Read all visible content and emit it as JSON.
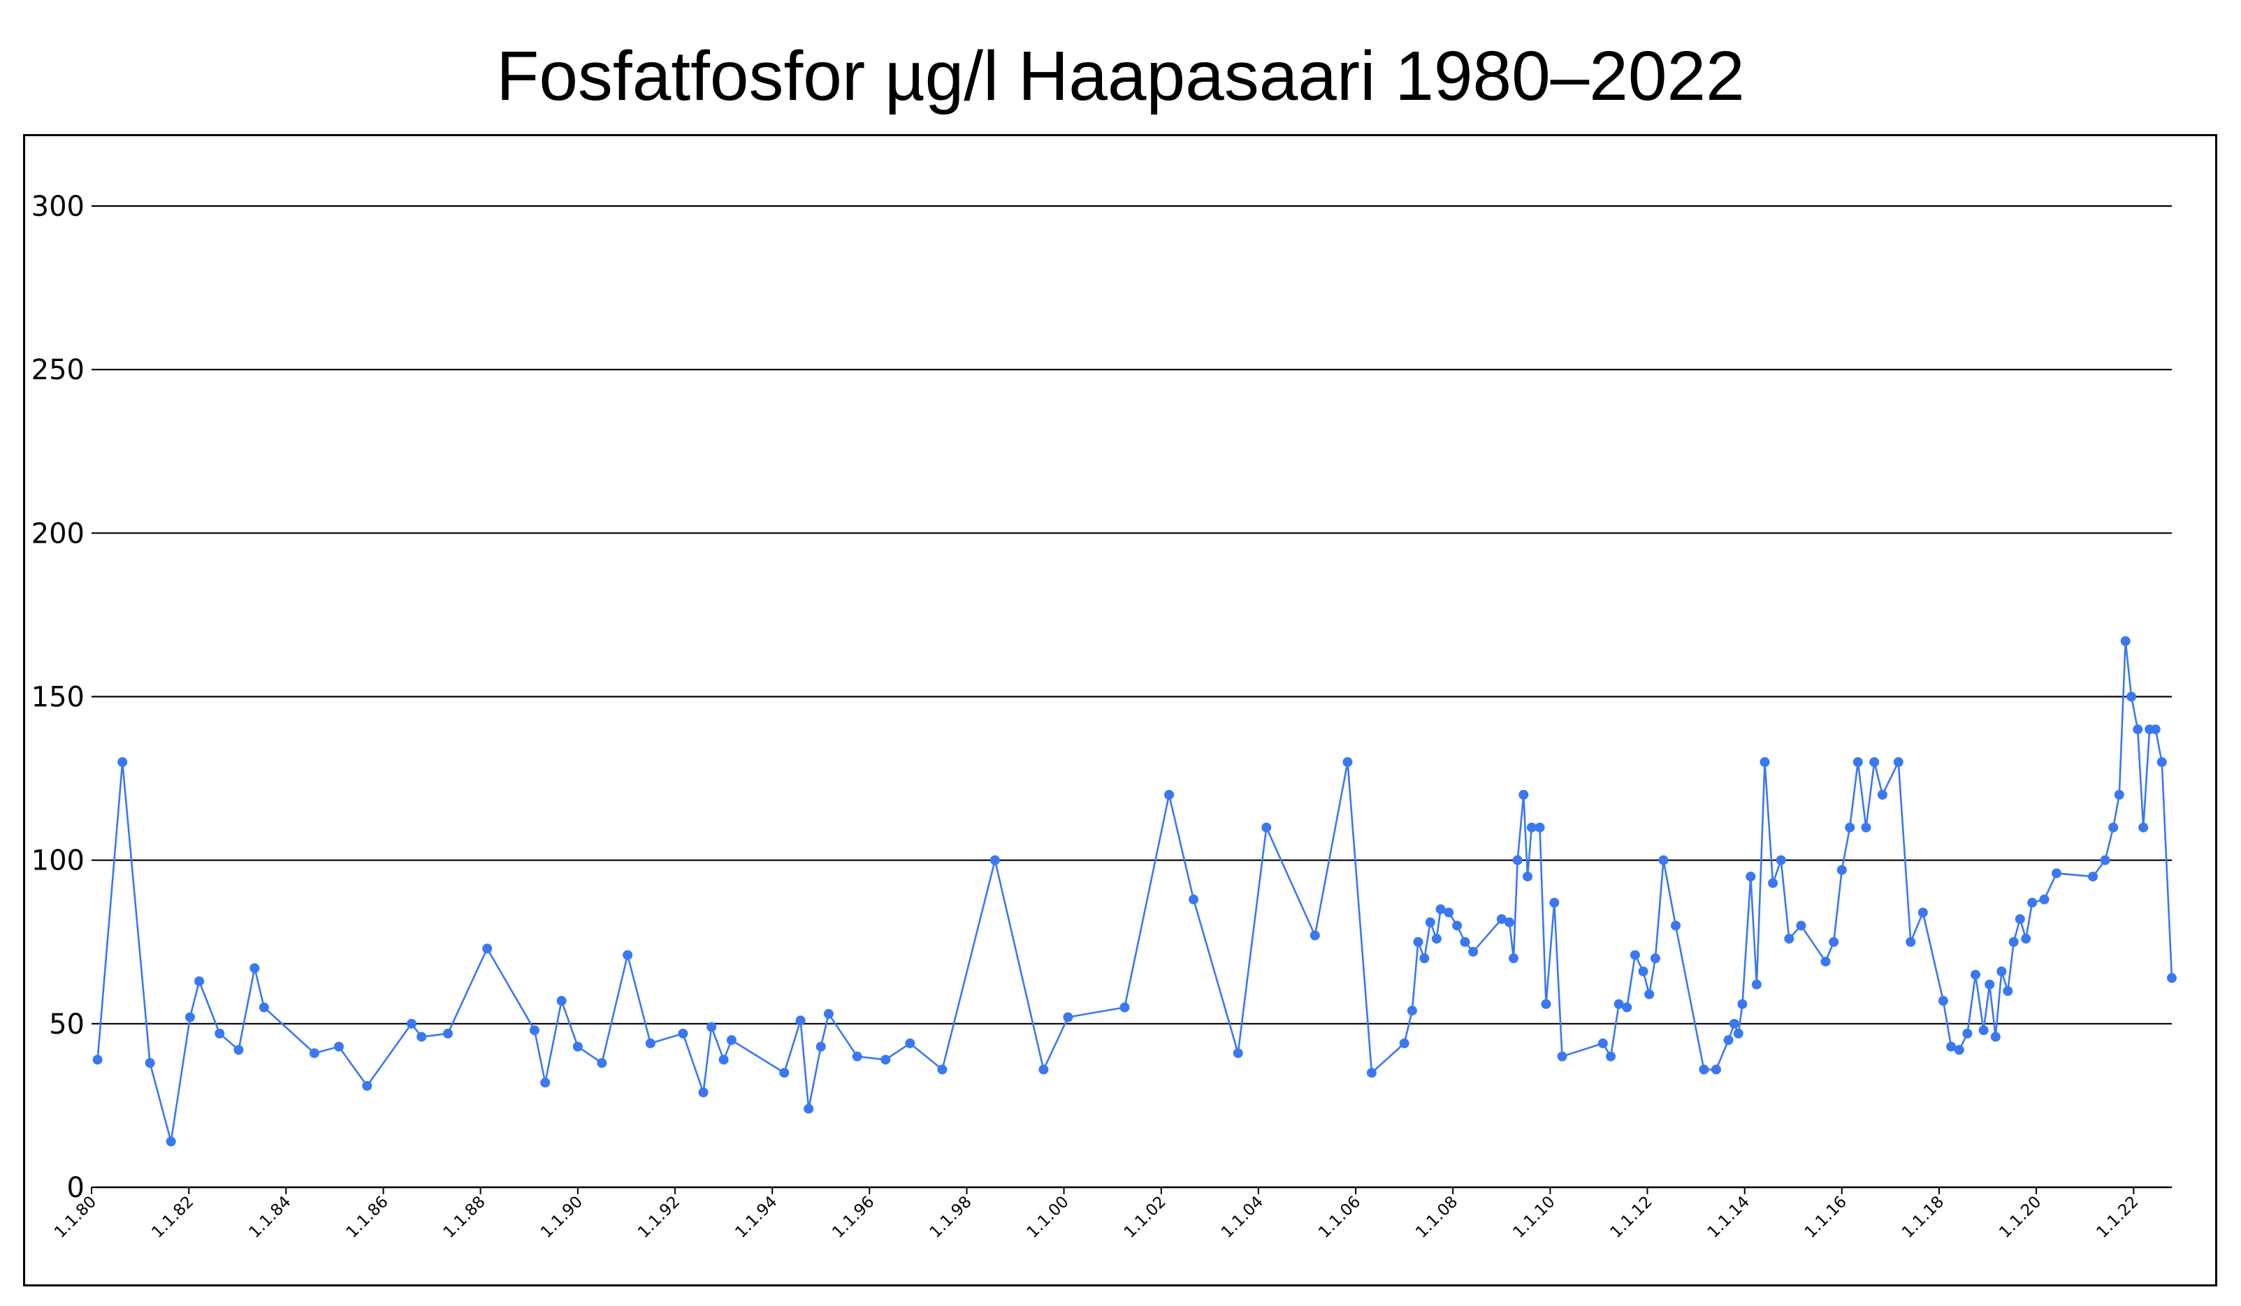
{
  "chart_data": {
    "type": "line",
    "title": "Fosfatfosfor µg/l Haapasaari 1980–2022",
    "xlabel": "",
    "ylabel": "",
    "ylim": [
      0,
      300
    ],
    "xlim": [
      "1980-01-01",
      "2022-10-15"
    ],
    "yticks": [
      0,
      50,
      100,
      150,
      200,
      250,
      300
    ],
    "ytick_labels": [
      "0",
      "50",
      "100",
      "150",
      "200",
      "250",
      "300"
    ],
    "xtick_labels": [
      "1.1.80",
      "1.1.82",
      "1.1.84",
      "1.1.86",
      "1.1.88",
      "1.1.90",
      "1.1.92",
      "1.1.94",
      "1.1.96",
      "1.1.98",
      "1.1.00",
      "1.1.02",
      "1.1.04",
      "1.1.06",
      "1.1.08",
      "1.1.10",
      "1.1.12",
      "1.1.14",
      "1.1.16",
      "1.1.18",
      "1.1.20",
      "1.1.22"
    ],
    "xtick_dates": [
      "1980-01-01",
      "1982-01-01",
      "1984-01-01",
      "1986-01-01",
      "1988-01-01",
      "1990-01-01",
      "1992-01-01",
      "1994-01-01",
      "1996-01-01",
      "1998-01-01",
      "2000-01-01",
      "2002-01-01",
      "2004-01-01",
      "2006-01-01",
      "2008-01-01",
      "2010-01-01",
      "2012-01-01",
      "2014-01-01",
      "2016-01-01",
      "2018-01-01",
      "2020-01-01",
      "2022-01-01"
    ],
    "grid": "horizontal",
    "series": [
      {
        "name": "",
        "color": "#3a78f2",
        "points": [
          [
            "1980-02-15",
            39
          ],
          [
            "1980-08-20",
            130
          ],
          [
            "1981-03-15",
            38
          ],
          [
            "1981-08-20",
            14
          ],
          [
            "1982-01-10",
            52
          ],
          [
            "1982-03-20",
            63
          ],
          [
            "1982-08-20",
            47
          ],
          [
            "1983-01-10",
            42
          ],
          [
            "1983-05-10",
            67
          ],
          [
            "1983-07-20",
            55
          ],
          [
            "1984-08-01",
            41
          ],
          [
            "1985-02-01",
            43
          ],
          [
            "1985-09-01",
            31
          ],
          [
            "1986-08-01",
            50
          ],
          [
            "1986-10-15",
            46
          ],
          [
            "1987-05-01",
            47
          ],
          [
            "1988-02-20",
            73
          ],
          [
            "1989-02-10",
            48
          ],
          [
            "1989-05-01",
            32
          ],
          [
            "1989-09-01",
            57
          ],
          [
            "1990-01-01",
            43
          ],
          [
            "1990-07-01",
            38
          ],
          [
            "1991-01-10",
            71
          ],
          [
            "1991-07-01",
            44
          ],
          [
            "1992-03-01",
            47
          ],
          [
            "1992-08-01",
            29
          ],
          [
            "1992-10-01",
            49
          ],
          [
            "1993-01-01",
            39
          ],
          [
            "1993-03-01",
            45
          ],
          [
            "1994-04-01",
            35
          ],
          [
            "1994-08-01",
            51
          ],
          [
            "1994-10-01",
            24
          ],
          [
            "1995-01-01",
            43
          ],
          [
            "1995-03-01",
            53
          ],
          [
            "1995-10-01",
            40
          ],
          [
            "1996-05-01",
            39
          ],
          [
            "1996-11-01",
            44
          ],
          [
            "1997-07-01",
            36
          ],
          [
            "1998-08-01",
            100
          ],
          [
            "1999-08-01",
            36
          ],
          [
            "2000-02-01",
            52
          ],
          [
            "2001-04-01",
            55
          ],
          [
            "2002-03-01",
            120
          ],
          [
            "2002-09-01",
            88
          ],
          [
            "2003-08-01",
            41
          ],
          [
            "2004-03-01",
            110
          ],
          [
            "2005-03-01",
            77
          ],
          [
            "2005-11-01",
            130
          ],
          [
            "2006-05-01",
            35
          ],
          [
            "2007-01-01",
            44
          ],
          [
            "2007-03-01",
            54
          ],
          [
            "2007-04-15",
            75
          ],
          [
            "2007-06-01",
            70
          ],
          [
            "2007-07-15",
            81
          ],
          [
            "2007-09-01",
            76
          ],
          [
            "2007-10-01",
            85
          ],
          [
            "2007-12-01",
            84
          ],
          [
            "2008-02-01",
            80
          ],
          [
            "2008-04-01",
            75
          ],
          [
            "2008-06-01",
            72
          ],
          [
            "2009-01-01",
            82
          ],
          [
            "2009-03-01",
            81
          ],
          [
            "2009-04-01",
            70
          ],
          [
            "2009-05-01",
            100
          ],
          [
            "2009-06-15",
            120
          ],
          [
            "2009-07-15",
            95
          ],
          [
            "2009-08-15",
            110
          ],
          [
            "2009-10-15",
            110
          ],
          [
            "2009-12-01",
            56
          ],
          [
            "2010-02-01",
            87
          ],
          [
            "2010-04-01",
            40
          ],
          [
            "2011-02-01",
            44
          ],
          [
            "2011-04-01",
            40
          ],
          [
            "2011-06-01",
            56
          ],
          [
            "2011-08-01",
            55
          ],
          [
            "2011-10-01",
            71
          ],
          [
            "2011-12-01",
            66
          ],
          [
            "2012-01-15",
            59
          ],
          [
            "2012-03-01",
            70
          ],
          [
            "2012-05-01",
            100
          ],
          [
            "2012-08-01",
            80
          ],
          [
            "2013-03-01",
            36
          ],
          [
            "2013-06-01",
            36
          ],
          [
            "2013-09-01",
            45
          ],
          [
            "2013-10-15",
            50
          ],
          [
            "2013-11-15",
            47
          ],
          [
            "2013-12-15",
            56
          ],
          [
            "2014-02-15",
            95
          ],
          [
            "2014-04-01",
            62
          ],
          [
            "2014-06-01",
            130
          ],
          [
            "2014-08-01",
            93
          ],
          [
            "2014-10-01",
            100
          ],
          [
            "2014-12-01",
            76
          ],
          [
            "2015-03-01",
            80
          ],
          [
            "2015-09-01",
            69
          ],
          [
            "2015-11-01",
            75
          ],
          [
            "2016-01-01",
            97
          ],
          [
            "2016-03-01",
            110
          ],
          [
            "2016-05-01",
            130
          ],
          [
            "2016-07-01",
            110
          ],
          [
            "2016-09-01",
            130
          ],
          [
            "2016-11-01",
            120
          ],
          [
            "2017-03-01",
            130
          ],
          [
            "2017-06-01",
            75
          ],
          [
            "2017-09-01",
            84
          ],
          [
            "2018-02-01",
            57
          ],
          [
            "2018-04-01",
            43
          ],
          [
            "2018-06-01",
            42
          ],
          [
            "2018-08-01",
            47
          ],
          [
            "2018-10-01",
            65
          ],
          [
            "2018-12-01",
            48
          ],
          [
            "2019-01-15",
            62
          ],
          [
            "2019-03-01",
            46
          ],
          [
            "2019-04-15",
            66
          ],
          [
            "2019-06-01",
            60
          ],
          [
            "2019-07-15",
            75
          ],
          [
            "2019-09-01",
            82
          ],
          [
            "2019-10-15",
            76
          ],
          [
            "2019-12-01",
            87
          ],
          [
            "2020-03-01",
            88
          ],
          [
            "2020-06-01",
            96
          ],
          [
            "2021-03-01",
            95
          ],
          [
            "2021-06-01",
            100
          ],
          [
            "2021-08-01",
            110
          ],
          [
            "2021-09-15",
            120
          ],
          [
            "2021-11-01",
            167
          ],
          [
            "2021-12-15",
            150
          ],
          [
            "2022-02-01",
            140
          ],
          [
            "2022-03-15",
            110
          ],
          [
            "2022-05-01",
            140
          ],
          [
            "2022-06-15",
            140
          ],
          [
            "2022-08-01",
            130
          ],
          [
            "2022-10-15",
            64
          ]
        ]
      }
    ]
  }
}
